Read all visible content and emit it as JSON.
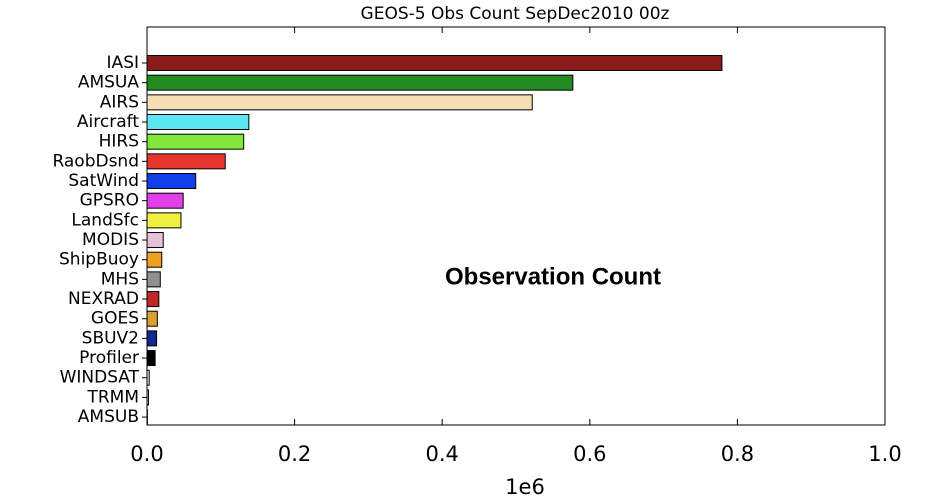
{
  "chart_data": {
    "type": "bar",
    "orientation": "horizontal",
    "title": "GEOS-5 Obs Count SepDec2010 00z",
    "annotation": "Observation Count",
    "x_offset_label": "1e6",
    "categories": [
      "IASI",
      "AMSUA",
      "AIRS",
      "Aircraft",
      "HIRS",
      "RaobDsnd",
      "SatWind",
      "GPSRO",
      "LandSfc",
      "MODIS",
      "ShipBuoy",
      "MHS",
      "NEXRAD",
      "GOES",
      "SBUV2",
      "Profiler",
      "WINDSAT",
      "TRMM",
      "AMSUB"
    ],
    "values": [
      0.779,
      0.577,
      0.522,
      0.138,
      0.131,
      0.106,
      0.066,
      0.049,
      0.046,
      0.022,
      0.02,
      0.018,
      0.016,
      0.014,
      0.013,
      0.011,
      0.003,
      0.002,
      0.0005
    ],
    "colors": [
      "#8b1a1a",
      "#228b22",
      "#f5deb3",
      "#5ce6f0",
      "#7fe83a",
      "#e8352b",
      "#1040e8",
      "#e040e8",
      "#f0f040",
      "#e8c0d8",
      "#f0a020",
      "#909090",
      "#c02828",
      "#d8a030",
      "#102890",
      "#000000",
      "#eeeeee",
      "#eeeeee",
      "#eeeeee"
    ],
    "xlim": [
      0,
      1
    ],
    "xticks": [
      {
        "value": 0,
        "label": "0.0"
      },
      {
        "value": 0.2,
        "label": "0.2"
      },
      {
        "value": 0.4,
        "label": "0.4"
      },
      {
        "value": 0.6,
        "label": "0.6"
      },
      {
        "value": 0.8,
        "label": "0.8"
      },
      {
        "value": 1,
        "label": "1.0"
      }
    ]
  }
}
